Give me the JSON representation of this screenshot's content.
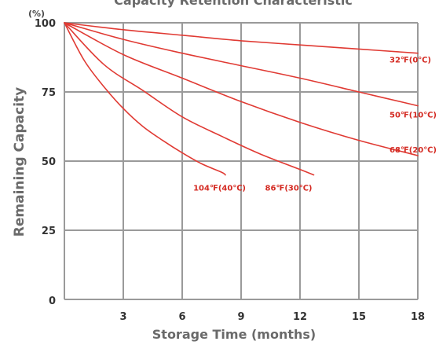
{
  "chart_data": {
    "type": "line",
    "title": "Capacity Retention Characteristic",
    "y_unit": "(%)",
    "xlabel": "Storage Time (months)",
    "ylabel": "Remaining Capacity",
    "xlim": [
      0,
      18
    ],
    "ylim": [
      0,
      100
    ],
    "x_ticks": [
      3,
      6,
      9,
      12,
      15,
      18
    ],
    "y_ticks": [
      0,
      25,
      50,
      75,
      100
    ],
    "x_tick_labels": [
      "3",
      "6",
      "9",
      "12",
      "15",
      "18"
    ],
    "y_tick_labels": [
      "0",
      "25",
      "50",
      "75",
      "100"
    ],
    "grid": true,
    "line_color": "#e03a33",
    "label_color": "#d42a22",
    "grid_color": "#9a9a9a",
    "series": [
      {
        "name": "32℉(0℃)",
        "x": [
          0,
          3,
          6,
          9,
          12,
          15,
          18
        ],
        "y": [
          100,
          97.5,
          95.5,
          93.5,
          92,
          90.5,
          89
        ]
      },
      {
        "name": "50℉(10℃)",
        "x": [
          0,
          3,
          6,
          9,
          12,
          15,
          18
        ],
        "y": [
          100,
          94,
          89,
          84.5,
          80,
          75,
          70
        ]
      },
      {
        "name": "68℉(20℃)",
        "x": [
          0,
          3,
          6,
          9,
          12,
          15,
          18
        ],
        "y": [
          100,
          88.5,
          80,
          71.5,
          64,
          57.5,
          52
        ]
      },
      {
        "name": "86℉(30℃)",
        "x": [
          0,
          2,
          4,
          6,
          8,
          10,
          12,
          12.7
        ],
        "y": [
          100,
          85,
          75.5,
          66,
          59,
          52.5,
          47,
          45
        ]
      },
      {
        "name": "104℉(40℃)",
        "x": [
          0,
          1,
          2,
          3,
          4,
          5,
          6,
          7,
          8,
          8.2
        ],
        "y": [
          100,
          86.5,
          77,
          69,
          62.5,
          57.5,
          53,
          49,
          46,
          45
        ]
      }
    ]
  }
}
